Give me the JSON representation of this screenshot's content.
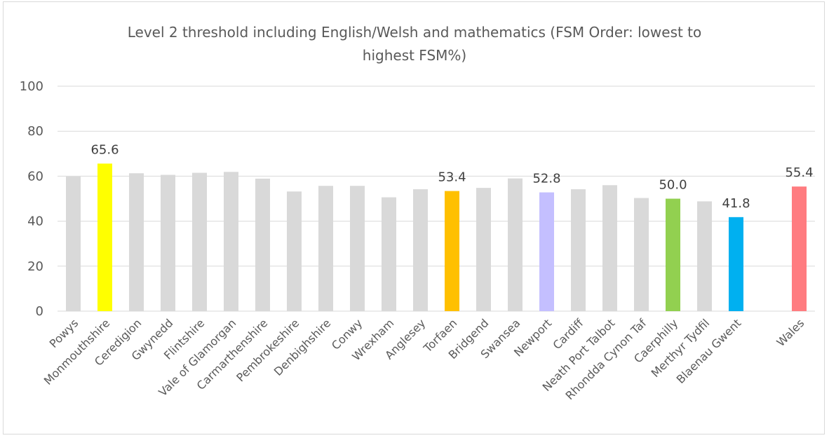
{
  "chart_data": {
    "type": "bar",
    "title_lines": [
      "Level 2 threshold including English/Welsh and mathematics   (FSM Order: lowest to",
      "highest FSM%)"
    ],
    "xlabel": "",
    "ylabel": "",
    "ylim": [
      0,
      100
    ],
    "yticks": [
      0,
      20,
      40,
      60,
      80,
      100
    ],
    "grid": true,
    "legend": "none",
    "default_color": "#d9d9d9",
    "bars": [
      {
        "category": "Powys",
        "value": 59.8,
        "color": "#d9d9d9",
        "label": ""
      },
      {
        "category": "Monmouthshire",
        "value": 65.6,
        "color": "#ffff00",
        "label": "65.6"
      },
      {
        "category": "Ceredigion",
        "value": 61.3,
        "color": "#d9d9d9",
        "label": ""
      },
      {
        "category": "Gwynedd",
        "value": 60.6,
        "color": "#d9d9d9",
        "label": ""
      },
      {
        "category": "Flintshire",
        "value": 61.5,
        "color": "#d9d9d9",
        "label": ""
      },
      {
        "category": "Vale of Glamorgan",
        "value": 61.9,
        "color": "#d9d9d9",
        "label": ""
      },
      {
        "category": "Carmarthenshire",
        "value": 58.9,
        "color": "#d9d9d9",
        "label": ""
      },
      {
        "category": "Pembrokeshire",
        "value": 53.2,
        "color": "#d9d9d9",
        "label": ""
      },
      {
        "category": "Denbighshire",
        "value": 55.7,
        "color": "#d9d9d9",
        "label": ""
      },
      {
        "category": "Conwy",
        "value": 55.7,
        "color": "#d9d9d9",
        "label": ""
      },
      {
        "category": "Wrexham",
        "value": 50.6,
        "color": "#d9d9d9",
        "label": ""
      },
      {
        "category": "Anglesey",
        "value": 54.2,
        "color": "#d9d9d9",
        "label": ""
      },
      {
        "category": "Torfaen",
        "value": 53.4,
        "color": "#ffc000",
        "label": "53.4"
      },
      {
        "category": "Bridgend",
        "value": 54.8,
        "color": "#d9d9d9",
        "label": ""
      },
      {
        "category": "Swansea",
        "value": 59.0,
        "color": "#d9d9d9",
        "label": ""
      },
      {
        "category": "Newport",
        "value": 52.8,
        "color": "#c4bfff",
        "label": "52.8"
      },
      {
        "category": "Cardiff",
        "value": 54.2,
        "color": "#d9d9d9",
        "label": ""
      },
      {
        "category": "Neath Port Talbot",
        "value": 56.0,
        "color": "#d9d9d9",
        "label": ""
      },
      {
        "category": "Rhondda Cynon Taf",
        "value": 50.3,
        "color": "#d9d9d9",
        "label": ""
      },
      {
        "category": "Caerphilly",
        "value": 50.0,
        "color": "#92d050",
        "label": "50.0"
      },
      {
        "category": "Merthyr Tydfil",
        "value": 48.8,
        "color": "#d9d9d9",
        "label": ""
      },
      {
        "category": "Blaenau Gwent",
        "value": 41.8,
        "color": "#00b0f0",
        "label": "41.8"
      },
      {
        "category": "",
        "value": null,
        "color": "#ffffff",
        "label": ""
      },
      {
        "category": "Wales",
        "value": 55.4,
        "color": "#ff7c80",
        "label": "55.4"
      }
    ]
  }
}
